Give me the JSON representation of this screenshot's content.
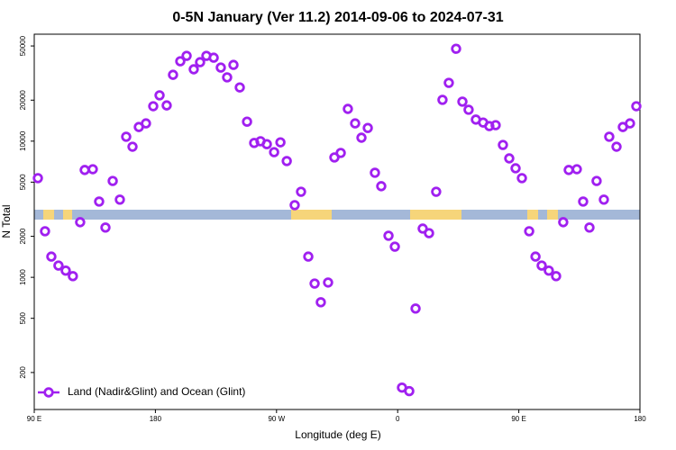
{
  "chart_data": {
    "type": "scatter",
    "title": "0-5N January (Ver 11.2)   2014-09-06 to 2024-07-31",
    "x_label": "Longitude (deg E)",
    "y_label": "N Total",
    "log_y": true,
    "xlim": [
      90,
      540
    ],
    "ylim": [
      107,
      61000
    ],
    "xticks": [
      {
        "value": 90,
        "label": "90 E"
      },
      180,
      {
        "value": 270,
        "label": "90 W"
      },
      {
        "value": 360,
        "label": "0"
      },
      {
        "value": 450,
        "label": "90 E"
      },
      {
        "value": 540,
        "label": "180"
      }
    ],
    "yticks": [
      200,
      500,
      1000,
      2000,
      5000,
      10000,
      20000,
      50000
    ],
    "series": [
      {
        "name": "Land (Nadir&Glint) and Ocean (Glint)",
        "color": "#a020f0",
        "x": [
          92.7,
          98,
          102.7,
          108,
          113.4,
          118.7,
          124.1,
          127.5,
          133.5,
          138.2,
          142.9,
          148.3,
          153.6,
          158.3,
          163,
          167.7,
          173,
          178.4,
          183.1,
          188.4,
          193.1,
          198.5,
          203.2,
          208.5,
          213.2,
          217.9,
          223.3,
          228.6,
          233.3,
          238,
          242.7,
          248.1,
          253.4,
          258.1,
          262.8,
          268.2,
          272.9,
          277.6,
          283.5,
          288.2,
          293.6,
          298.3,
          302.9,
          308.3,
          313,
          317.7,
          323,
          328.4,
          333.1,
          337.8,
          343.1,
          347.8,
          353.2,
          357.9,
          363.2,
          368.6,
          373.3,
          378.6,
          383.3,
          388.6,
          393.3,
          398,
          403.4,
          408.1,
          412.7,
          418.1,
          423.5,
          428.1,
          432.8,
          438.2,
          442.9,
          447.6,
          452.3,
          457.7,
          462.4,
          467,
          472.3,
          477.7,
          483,
          487.1,
          493.1,
          497.8,
          502.5,
          507.8,
          513.2,
          517.2,
          522.6,
          527.3,
          532.6,
          537.3
        ],
        "values": [
          5350,
          2180,
          1420,
          1220,
          1120,
          1020,
          2540,
          6140,
          6220,
          3600,
          2320,
          5100,
          3720,
          10770,
          9100,
          12700,
          13500,
          18050,
          21700,
          18300,
          30700,
          38600,
          42300,
          33700,
          38000,
          42300,
          41000,
          34700,
          29400,
          36300,
          24800,
          13900,
          9700,
          9980,
          9500,
          8300,
          9800,
          7140,
          3390,
          4250,
          1420,
          900,
          656,
          916,
          7590,
          8190,
          17250,
          13500,
          10600,
          12500,
          5860,
          4670,
          2020,
          1680,
          155,
          146,
          590,
          2280,
          2110,
          4250,
          20100,
          26800,
          47700,
          19500,
          17000,
          14400,
          13700,
          12900,
          13100,
          9380,
          7470,
          6320,
          5350,
          2180,
          1420,
          1220,
          1120,
          1020,
          2540,
          6140,
          6220,
          3600,
          2320,
          5100,
          3720,
          10770,
          9100,
          12700,
          13500,
          18050
        ]
      }
    ],
    "legend": "bottom-left"
  }
}
